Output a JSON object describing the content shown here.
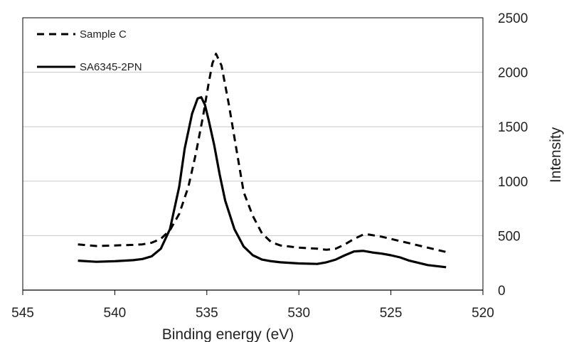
{
  "chart_data": {
    "type": "line",
    "title": "",
    "xlabel": "Binding energy (eV)",
    "ylabel": "Intensity",
    "xlim": [
      545,
      520
    ],
    "ylim": [
      0,
      2500
    ],
    "x_reversed": true,
    "y_axis_side": "right",
    "x_ticks": [
      "545",
      "540",
      "535",
      "530",
      "525",
      "520"
    ],
    "y_ticks": [
      "0",
      "500",
      "1000",
      "1500",
      "2000",
      "2500"
    ],
    "grid": "horizontal",
    "legend_position": "top-left",
    "series": [
      {
        "name": "Sample C",
        "style": "dashed",
        "color": "#000000",
        "x": [
          542,
          541,
          540,
          539,
          538.5,
          538,
          537.5,
          537,
          536.5,
          536,
          535.6,
          535.2,
          534.9,
          534.7,
          534.5,
          534.2,
          533.8,
          533.4,
          533,
          532.5,
          532,
          531.5,
          531,
          530,
          529,
          528.5,
          528,
          527.5,
          527,
          526.5,
          526.2,
          525.5,
          525,
          524.5,
          524,
          523,
          522
        ],
        "y": [
          420,
          405,
          410,
          415,
          420,
          435,
          470,
          550,
          700,
          950,
          1250,
          1600,
          1900,
          2080,
          2170,
          2060,
          1700,
          1300,
          900,
          680,
          520,
          440,
          410,
          390,
          380,
          370,
          380,
          420,
          470,
          510,
          510,
          490,
          470,
          450,
          430,
          390,
          350
        ]
      },
      {
        "name": "SA6345-2PN",
        "style": "solid",
        "color": "#000000",
        "x": [
          542,
          541,
          540,
          539,
          538.5,
          538,
          537.5,
          537,
          536.5,
          536.2,
          535.8,
          535.5,
          535.3,
          535.1,
          534.9,
          534.6,
          534.3,
          534,
          533.5,
          533,
          532.5,
          532,
          531.5,
          531,
          530,
          529,
          528.5,
          528,
          527.5,
          527,
          526.5,
          526,
          525.5,
          525,
          524.5,
          524,
          523,
          522
        ],
        "y": [
          270,
          260,
          265,
          275,
          285,
          310,
          380,
          560,
          950,
          1300,
          1620,
          1760,
          1770,
          1700,
          1560,
          1330,
          1060,
          820,
          560,
          400,
          320,
          280,
          265,
          255,
          245,
          240,
          255,
          280,
          320,
          355,
          360,
          345,
          335,
          320,
          300,
          270,
          230,
          210
        ]
      }
    ]
  }
}
